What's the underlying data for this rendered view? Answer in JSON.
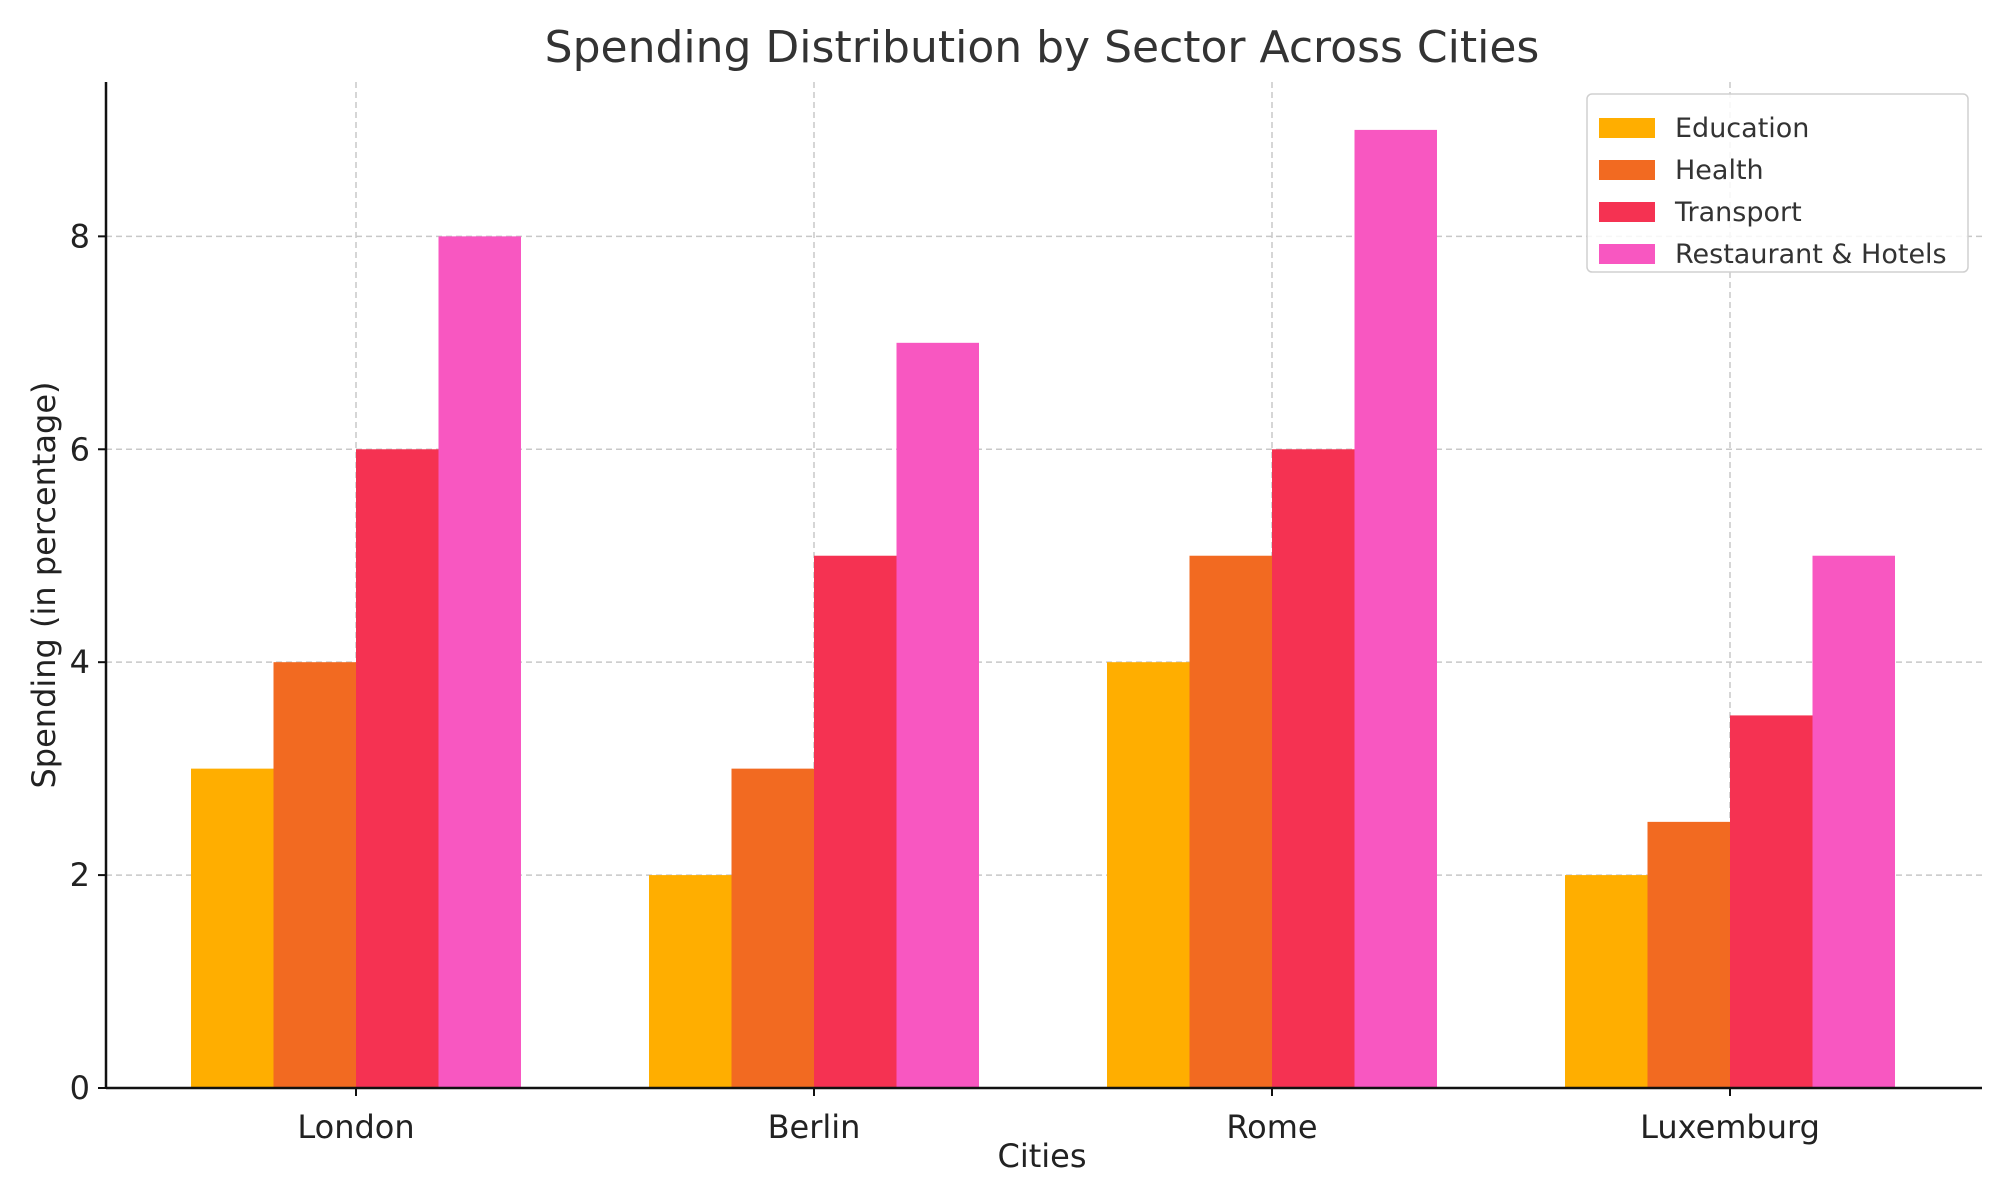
{
  "chart_data": {
    "type": "bar",
    "title": "Spending Distribution by Sector Across Cities",
    "xlabel": "Cities",
    "ylabel": "Spending (in percentage)",
    "categories": [
      "London",
      "Berlin",
      "Rome",
      "Luxemburg"
    ],
    "series": [
      {
        "name": "Education",
        "color": "#FFAE00",
        "values": [
          3,
          2,
          4,
          2
        ]
      },
      {
        "name": "Health",
        "color": "#F26A21",
        "values": [
          4,
          3,
          5,
          2.5
        ]
      },
      {
        "name": "Transport",
        "color": "#F53252",
        "values": [
          6,
          5,
          6,
          3.5
        ]
      },
      {
        "name": "Restaurant & Hotels",
        "color": "#F857C1",
        "values": [
          8,
          7,
          9,
          5
        ]
      }
    ],
    "ylim": [
      0,
      9.45
    ],
    "yticks": [
      0,
      2,
      4,
      6,
      8
    ],
    "grid": true,
    "legend_position": "top-right"
  }
}
